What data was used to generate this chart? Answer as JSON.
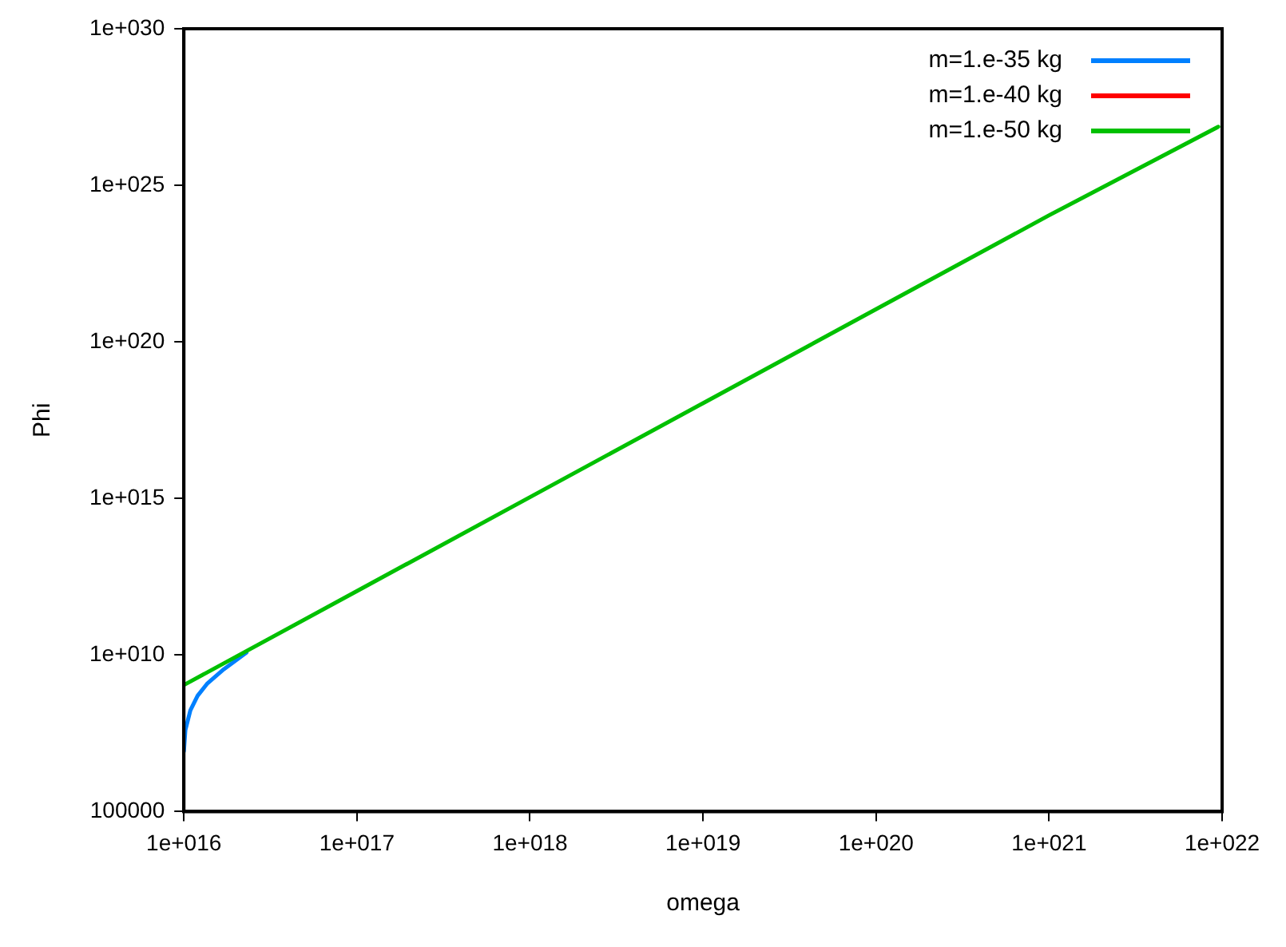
{
  "chart_data": {
    "type": "line",
    "xlabel": "omega",
    "ylabel": "Phi",
    "log": "xy",
    "grid": false,
    "legend": "top right",
    "marker": "none",
    "line_style": "solid",
    "xlim": [
      1e+16,
      1e+22
    ],
    "ylim": [
      100000,
      1e+30
    ],
    "xticks": [
      {
        "value": 1e+16,
        "label": "1e+016"
      },
      {
        "value": 1e+17,
        "label": "1e+017"
      },
      {
        "value": 1e+18,
        "label": "1e+018"
      },
      {
        "value": 1e+19,
        "label": "1e+019"
      },
      {
        "value": 1e+20,
        "label": "1e+020"
      },
      {
        "value": 1e+21,
        "label": "1e+021"
      },
      {
        "value": 1e+22,
        "label": "1e+022"
      }
    ],
    "yticks": [
      100000,
      {
        "value": 10000000000.0,
        "label": "1e+010"
      },
      {
        "value": 1000000000000000.0,
        "label": "1e+015"
      },
      {
        "value": 1e+20,
        "label": "1e+020"
      },
      {
        "value": 1e+25,
        "label": "1e+025"
      },
      {
        "value": 1e+30,
        "label": "1e+030"
      }
    ],
    "series": [
      {
        "name": "m=1.e-35 kg",
        "color": "#0080ff",
        "x": [
          1e+16,
          1.02e+16,
          1.09e+16,
          1.2e+16,
          1.36e+16,
          1.7e+16,
          2.3e+16
        ],
        "values": [
          8500000.0,
          40000000.0,
          170000000.0,
          500000000.0,
          1200000000.0,
          3500000000.0,
          12000000000.0
        ]
      },
      {
        "name": "m=1.e-40 kg",
        "color": "#ff0000"
      },
      {
        "name": "m=1.e-50 kg",
        "color": "#00c000",
        "x": [
          1e+16,
          1e+17,
          1e+18,
          1e+19,
          1e+20,
          1e+21,
          9.5e+21
        ],
        "values": [
          1100000000.0,
          1100000000000.0,
          1100000000000000.0,
          1.1e+18,
          1.1e+21,
          1.1e+24,
          7.4e+26
        ]
      }
    ]
  }
}
